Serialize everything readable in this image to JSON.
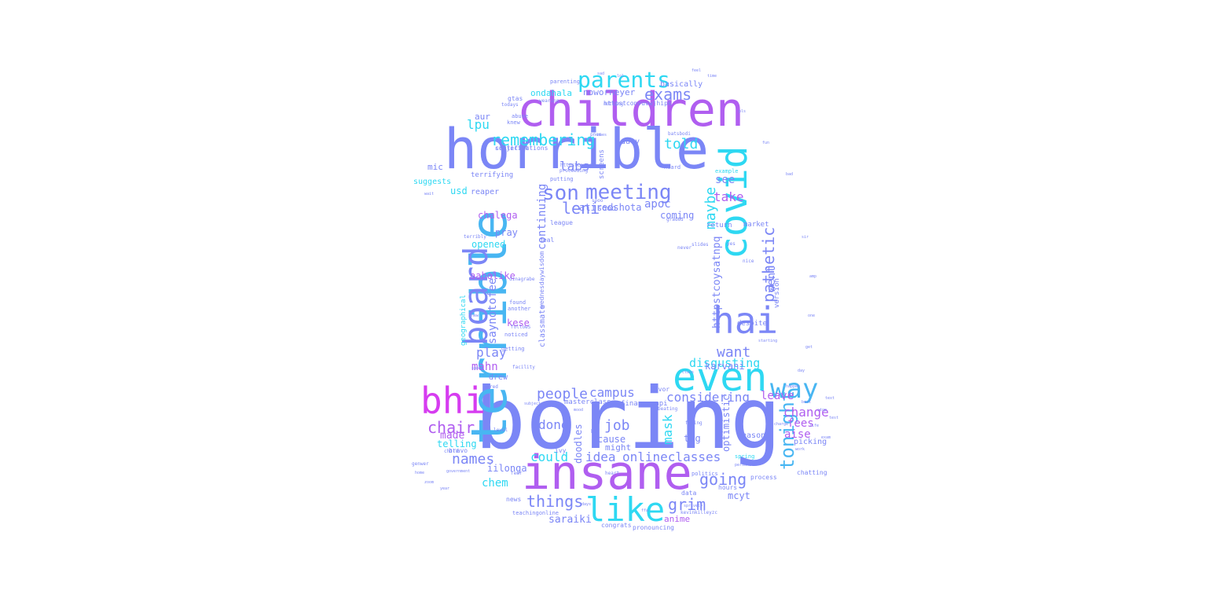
{
  "palette": {
    "blue": "#7b86f6",
    "purple": "#b05ef0",
    "magenta": "#d63cf0",
    "cyan": "#2ed8f2",
    "sky": "#48b6f2",
    "violet": "#9a73f5"
  },
  "words": [
    {
      "text": "boring",
      "color": "blue"
    },
    {
      "text": "insane",
      "color": "purple"
    },
    {
      "text": "horrible",
      "color": "blue"
    },
    {
      "text": "children",
      "color": "purple"
    },
    {
      "text": "terrible",
      "color": "sky"
    },
    {
      "text": "covid",
      "color": "cyan"
    },
    {
      "text": "even",
      "color": "cyan"
    },
    {
      "text": "hai",
      "color": "blue"
    },
    {
      "text": "board",
      "color": "blue"
    },
    {
      "text": "bhi",
      "color": "magenta"
    },
    {
      "text": "like",
      "color": "cyan"
    },
    {
      "text": "way",
      "color": "sky"
    },
    {
      "text": "meeting",
      "color": "blue"
    },
    {
      "text": "parents",
      "color": "cyan"
    },
    {
      "text": "son",
      "color": "blue"
    },
    {
      "text": "remembering",
      "color": "cyan"
    },
    {
      "text": "exams",
      "color": "blue"
    },
    {
      "text": "pathetic",
      "color": "blue"
    },
    {
      "text": "tonight",
      "color": "sky"
    },
    {
      "text": "maybe",
      "color": "cyan"
    },
    {
      "text": "leni",
      "color": "blue"
    },
    {
      "text": "told",
      "color": "cyan"
    },
    {
      "text": "want",
      "color": "blue"
    },
    {
      "text": "disgusting",
      "color": "cyan"
    },
    {
      "text": "people",
      "color": "blue"
    },
    {
      "text": "campus",
      "color": "blue"
    },
    {
      "text": "considering",
      "color": "blue"
    },
    {
      "text": "job",
      "color": "blue"
    },
    {
      "text": "chair",
      "color": "purple"
    },
    {
      "text": "names",
      "color": "blue"
    },
    {
      "text": "things",
      "color": "blue"
    },
    {
      "text": "going",
      "color": "blue"
    },
    {
      "text": "grim",
      "color": "blue"
    },
    {
      "text": "labs",
      "color": "blue"
    },
    {
      "text": "change",
      "color": "purple"
    },
    {
      "text": "done",
      "color": "blue"
    },
    {
      "text": "could",
      "color": "cyan"
    },
    {
      "text": "idea",
      "color": "blue"
    },
    {
      "text": "onlineclasses",
      "color": "blue"
    },
    {
      "text": "lpu",
      "color": "cyan"
    },
    {
      "text": "continuing",
      "color": "blue"
    },
    {
      "text": "play",
      "color": "blue"
    },
    {
      "text": "mahn",
      "color": "purple"
    },
    {
      "text": "take",
      "color": "purple"
    },
    {
      "text": "went",
      "color": "blue"
    },
    {
      "text": "see",
      "color": "blue"
    },
    {
      "text": "mask",
      "color": "cyan"
    },
    {
      "text": "httpstcoysatnpq",
      "color": "blue"
    },
    {
      "text": "saynotofees",
      "color": "blue"
    },
    {
      "text": "atiredshota",
      "color": "blue"
    },
    {
      "text": "apoc",
      "color": "blue"
    },
    {
      "text": "coming",
      "color": "blue"
    },
    {
      "text": "karvani",
      "color": "blue"
    },
    {
      "text": "leave",
      "color": "purple"
    },
    {
      "text": "fees",
      "color": "purple"
    },
    {
      "text": "aise",
      "color": "purple"
    },
    {
      "text": "chem",
      "color": "cyan"
    },
    {
      "text": "mcyt",
      "color": "blue"
    },
    {
      "text": "saraiki",
      "color": "blue"
    },
    {
      "text": "anime",
      "color": "purple"
    },
    {
      "text": "made",
      "color": "purple"
    },
    {
      "text": "telling",
      "color": "cyan"
    },
    {
      "text": "iilonga",
      "color": "blue"
    },
    {
      "text": "doodles",
      "color": "blue"
    },
    {
      "text": "cause",
      "color": "blue"
    },
    {
      "text": "might",
      "color": "blue"
    },
    {
      "text": "tog",
      "color": "blue"
    },
    {
      "text": "optimistic",
      "color": "blue"
    },
    {
      "text": "reasons",
      "color": "blue"
    },
    {
      "text": "picking",
      "color": "blue"
    },
    {
      "text": "opened",
      "color": "cyan"
    },
    {
      "text": "aaholike",
      "color": "purple"
    },
    {
      "text": "pray",
      "color": "blue"
    },
    {
      "text": "chalega",
      "color": "purple"
    },
    {
      "text": "usd",
      "color": "cyan"
    },
    {
      "text": "mic",
      "color": "blue"
    },
    {
      "text": "aur",
      "color": "blue"
    },
    {
      "text": "reaper",
      "color": "blue"
    },
    {
      "text": "suggests",
      "color": "cyan"
    },
    {
      "text": "terrifying",
      "color": "blue"
    },
    {
      "text": "ondahala",
      "color": "cyan"
    },
    {
      "text": "noworneyer",
      "color": "blue"
    },
    {
      "text": "basically",
      "color": "blue"
    },
    {
      "text": "sooo",
      "color": "blue"
    },
    {
      "text": "duty",
      "color": "blue"
    },
    {
      "text": "kese",
      "color": "purple"
    },
    {
      "text": "classmate",
      "color": "blue"
    },
    {
      "text": "drew",
      "color": "blue"
    },
    {
      "text": "certifications",
      "color": "blue"
    },
    {
      "text": "market",
      "color": "blue"
    },
    {
      "text": "despite",
      "color": "blue"
    },
    {
      "text": "version",
      "color": "blue"
    },
    {
      "text": "return",
      "color": "blue"
    },
    {
      "text": "masterclass",
      "color": "blue"
    },
    {
      "text": "financepapi",
      "color": "blue"
    },
    {
      "text": "geographical",
      "color": "cyan"
    },
    {
      "text": "subjectat",
      "color": "blue"
    },
    {
      "text": "screens",
      "color": "blue"
    },
    {
      "text": "wednesdaywisdom",
      "color": "blue"
    },
    {
      "text": "deal",
      "color": "blue"
    },
    {
      "text": "league",
      "color": "blue"
    },
    {
      "text": "httpstconvuvwjhipk",
      "color": "blue"
    },
    {
      "text": "gtas",
      "color": "blue"
    },
    {
      "text": "news",
      "color": "blue"
    },
    {
      "text": "hours",
      "color": "blue"
    },
    {
      "text": "congrats",
      "color": "blue"
    },
    {
      "text": "data",
      "color": "blue"
    },
    {
      "text": "chatting",
      "color": "blue"
    },
    {
      "text": "bravo",
      "color": "blue"
    },
    {
      "text": "process",
      "color": "blue"
    },
    {
      "text": "pronouncing",
      "color": "blue"
    },
    {
      "text": "ivy",
      "color": "blue"
    },
    {
      "text": "politics",
      "color": "blue"
    },
    {
      "text": "spring",
      "color": "cyan"
    },
    {
      "text": "favor",
      "color": "blue"
    },
    {
      "text": "example",
      "color": "cyan"
    },
    {
      "text": "heard",
      "color": "blue"
    },
    {
      "text": "putting",
      "color": "blue"
    },
    {
      "text": "found",
      "color": "blue"
    },
    {
      "text": "another",
      "color": "blue"
    },
    {
      "text": "getting",
      "color": "blue"
    },
    {
      "text": "teachingonline",
      "color": "blue"
    },
    {
      "text": "noticed",
      "color": "blue"
    },
    {
      "text": "parenting",
      "color": "blue"
    },
    {
      "text": "abuse",
      "color": "blue"
    },
    {
      "text": "knew",
      "color": "blue"
    },
    {
      "text": "todays",
      "color": "blue"
    },
    {
      "text": "wearing",
      "color": "blue"
    },
    {
      "text": "slides",
      "color": "blue"
    },
    {
      "text": "never",
      "color": "blue"
    },
    {
      "text": "graded",
      "color": "blue"
    },
    {
      "text": "terribly",
      "color": "blue"
    },
    {
      "text": "child",
      "color": "blue"
    },
    {
      "text": "genwer",
      "color": "blue"
    },
    {
      "text": "batsbodi",
      "color": "blue"
    },
    {
      "text": "nothing",
      "color": "blue"
    },
    {
      "text": "followS",
      "color": "blue"
    },
    {
      "text": "sooo",
      "color": "blue"
    },
    {
      "text": "yes",
      "color": "blue"
    },
    {
      "text": "nice",
      "color": "blue"
    },
    {
      "text": "httpstcoxwcp",
      "color": "blue"
    },
    {
      "text": "proceeding",
      "color": "blue"
    },
    {
      "text": "dinagrabe",
      "color": "blue"
    },
    {
      "text": "beating",
      "color": "blue"
    },
    {
      "text": "facility",
      "color": "blue"
    },
    {
      "text": "red",
      "color": "blue"
    },
    {
      "text": "level",
      "color": "blue"
    },
    {
      "text": "fear",
      "color": "blue"
    },
    {
      "text": "heart",
      "color": "blue"
    },
    {
      "text": "fixing",
      "color": "blue"
    },
    {
      "text": "bts",
      "color": "blue"
    },
    {
      "text": "personal",
      "color": "blue"
    },
    {
      "text": "speak",
      "color": "blue"
    },
    {
      "text": "starting",
      "color": "blue"
    },
    {
      "text": "class",
      "color": "blue"
    },
    {
      "text": "charge",
      "color": "blue"
    },
    {
      "text": "kevinkilleyzc",
      "color": "blue"
    },
    {
      "text": "government",
      "color": "blue"
    },
    {
      "text": "mood",
      "color": "blue"
    },
    {
      "text": "days",
      "color": "blue"
    },
    {
      "text": "sprively",
      "color": "blue"
    },
    {
      "text": "happen",
      "color": "blue"
    },
    {
      "text": "pnes",
      "color": "blue"
    },
    {
      "text": "ones",
      "color": "blue"
    },
    {
      "text": "subject",
      "color": "blue"
    },
    {
      "text": "ffa",
      "color": "blue"
    },
    {
      "text": "wait",
      "color": "blue"
    },
    {
      "text": "stop",
      "color": "blue"
    },
    {
      "text": "best",
      "color": "blue"
    },
    {
      "text": "text",
      "color": "blue"
    },
    {
      "text": "test",
      "color": "blue"
    },
    {
      "text": "life",
      "color": "blue"
    },
    {
      "text": "exam",
      "color": "blue"
    },
    {
      "text": "work",
      "color": "blue"
    },
    {
      "text": "home",
      "color": "blue"
    },
    {
      "text": "zoom",
      "color": "blue"
    },
    {
      "text": "year",
      "color": "blue"
    },
    {
      "text": "time",
      "color": "blue"
    },
    {
      "text": "feel",
      "color": "blue"
    },
    {
      "text": "sad",
      "color": "blue"
    },
    {
      "text": "lol",
      "color": "blue"
    },
    {
      "text": "pls",
      "color": "blue"
    },
    {
      "text": "fun",
      "color": "blue"
    },
    {
      "text": "bad",
      "color": "blue"
    },
    {
      "text": "sir",
      "color": "blue"
    },
    {
      "text": "amp",
      "color": "blue"
    },
    {
      "text": "one",
      "color": "blue"
    },
    {
      "text": "get",
      "color": "blue"
    },
    {
      "text": "day",
      "color": "blue"
    },
    {
      "text": "new",
      "color": "blue"
    }
  ]
}
